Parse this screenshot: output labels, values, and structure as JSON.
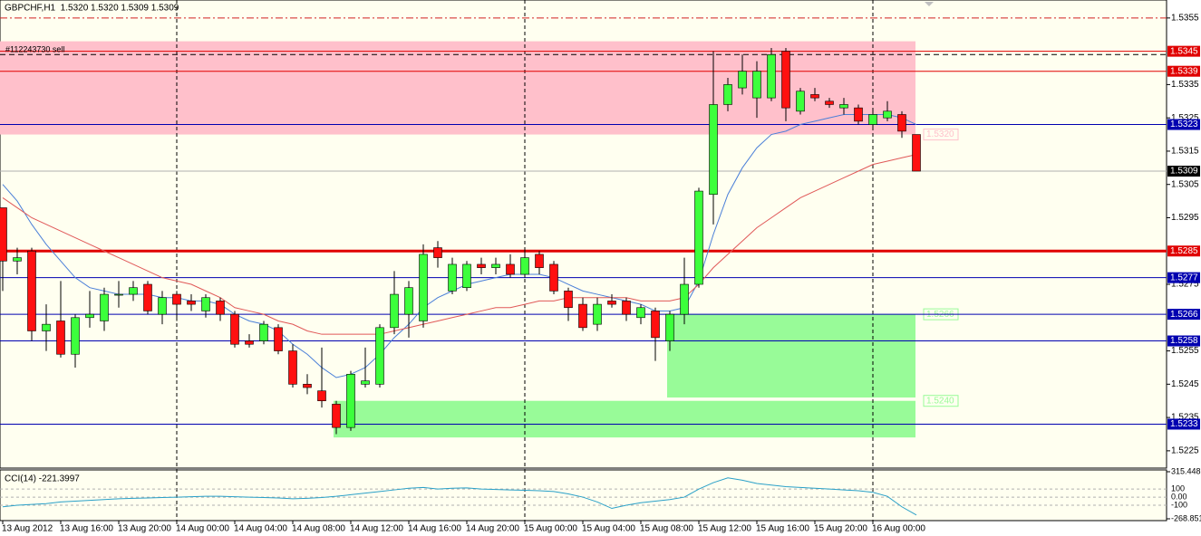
{
  "chart_data": [
    {
      "type": "candlestick",
      "title": "GBPCHF,H1  1.5320 1.5320 1.5309 1.5309",
      "annotation": "#112243730 sell",
      "categories": [
        "13 Aug 2012",
        null,
        null,
        null,
        "13 Aug 16:00",
        null,
        null,
        null,
        "13 Aug 20:00",
        null,
        null,
        null,
        "14 Aug 00:00",
        null,
        null,
        null,
        "14 Aug 04:00",
        null,
        null,
        null,
        "14 Aug 08:00",
        null,
        null,
        null,
        "14 Aug 12:00",
        null,
        null,
        null,
        "14 Aug 16:00",
        null,
        null,
        null,
        "14 Aug 20:00",
        null,
        null,
        null,
        "15 Aug 00:00",
        null,
        null,
        null,
        "15 Aug 04:00",
        null,
        null,
        null,
        "15 Aug 08:00",
        null,
        null,
        null,
        "15 Aug 12:00",
        null,
        null,
        null,
        "15 Aug 16:00",
        null,
        null,
        null,
        "15 Aug 20:00",
        null,
        null,
        null,
        "16 Aug 00:00",
        null,
        null,
        null
      ],
      "open": [
        1.5298,
        1.5282,
        1.5285,
        1.5261,
        1.5264,
        1.5254,
        1.5265,
        1.5264,
        1.5272,
        1.5272,
        1.5275,
        1.5266,
        1.5272,
        1.527,
        1.5267,
        1.527,
        1.5266,
        1.5258,
        1.5258,
        1.5262,
        1.5255,
        1.5245,
        1.5243,
        1.5239,
        1.5232,
        1.5245,
        1.5245,
        1.5262,
        1.5266,
        1.5264,
        1.5286,
        1.5273,
        1.5274,
        1.5281,
        1.528,
        1.5281,
        1.5278,
        1.5284,
        1.5281,
        1.5273,
        1.5269,
        1.5263,
        1.527,
        1.527,
        1.5265,
        1.5267,
        1.5258,
        1.5266,
        1.5275,
        1.5302,
        1.5329,
        1.5334,
        1.5331,
        1.5331,
        1.5345,
        1.5327,
        1.5332,
        1.533,
        1.5328,
        1.5328,
        1.5323,
        1.5325,
        1.5326,
        1.532
      ],
      "high": [
        1.5298,
        1.5286,
        1.5286,
        1.5269,
        1.5276,
        1.5266,
        1.5273,
        1.5274,
        1.5276,
        1.5276,
        1.5276,
        1.5273,
        1.5273,
        1.5272,
        1.5272,
        1.5271,
        1.5267,
        1.526,
        1.5264,
        1.5263,
        1.5257,
        1.5248,
        1.5256,
        1.524,
        1.5249,
        1.5256,
        1.5263,
        1.5279,
        1.5276,
        1.5287,
        1.5288,
        1.5283,
        1.5282,
        1.5283,
        1.5283,
        1.5284,
        1.5286,
        1.5285,
        1.5282,
        1.5274,
        1.5271,
        1.5271,
        1.5272,
        1.5271,
        1.5269,
        1.5268,
        1.5267,
        1.5283,
        1.5304,
        1.5345,
        1.5337,
        1.5344,
        1.5342,
        1.5346,
        1.5346,
        1.5334,
        1.5334,
        1.5331,
        1.5331,
        1.5329,
        1.5327,
        1.533,
        1.5327,
        1.532
      ],
      "low": [
        1.5273,
        1.5278,
        1.5258,
        1.5255,
        1.5253,
        1.525,
        1.5262,
        1.5261,
        1.5268,
        1.527,
        1.5266,
        1.5263,
        1.5264,
        1.5267,
        1.5265,
        1.5264,
        1.5256,
        1.5256,
        1.5257,
        1.5254,
        1.5244,
        1.5242,
        1.5238,
        1.523,
        1.5231,
        1.5244,
        1.5244,
        1.526,
        1.5259,
        1.5262,
        1.528,
        1.5272,
        1.5273,
        1.5278,
        1.5278,
        1.5277,
        1.5277,
        1.5278,
        1.5272,
        1.5264,
        1.5261,
        1.5261,
        1.5268,
        1.5264,
        1.5263,
        1.5252,
        1.5255,
        1.5263,
        1.5274,
        1.5293,
        1.5327,
        1.5332,
        1.5325,
        1.533,
        1.5324,
        1.5326,
        1.533,
        1.5328,
        1.5326,
        1.5323,
        1.5322,
        1.5324,
        1.5319,
        1.5309
      ],
      "close": [
        1.5282,
        1.5283,
        1.5261,
        1.5263,
        1.5254,
        1.5265,
        1.5266,
        1.5272,
        1.5272,
        1.5274,
        1.5267,
        1.5271,
        1.5269,
        1.5269,
        1.5271,
        1.5266,
        1.5257,
        1.5257,
        1.5263,
        1.5255,
        1.5245,
        1.5244,
        1.524,
        1.5232,
        1.5248,
        1.5246,
        1.5262,
        1.5272,
        1.5274,
        1.5284,
        1.5283,
        1.5281,
        1.5281,
        1.528,
        1.5281,
        1.5278,
        1.5283,
        1.528,
        1.5273,
        1.5268,
        1.5262,
        1.5269,
        1.5269,
        1.5266,
        1.5268,
        1.5259,
        1.5266,
        1.5275,
        1.5303,
        1.5329,
        1.5335,
        1.5339,
        1.5339,
        1.5344,
        1.5328,
        1.5333,
        1.5331,
        1.5329,
        1.5329,
        1.5324,
        1.5326,
        1.5327,
        1.5321,
        1.5309
      ],
      "up_color": "#3cff3c",
      "down_color": "#ff1010",
      "overlays": [
        {
          "color": "#4a7fd8",
          "values": [
            1.5305,
            1.53,
            1.5293,
            1.5287,
            1.5282,
            1.5277,
            1.5274,
            1.5273,
            1.5272,
            1.5272,
            1.5272,
            1.5271,
            1.5271,
            1.527,
            1.527,
            1.5269,
            1.5266,
            1.5264,
            1.5263,
            1.5261,
            1.5257,
            1.5254,
            1.525,
            1.5247,
            1.5248,
            1.525,
            1.5254,
            1.5259,
            1.5263,
            1.5268,
            1.5271,
            1.5273,
            1.5275,
            1.5276,
            1.5277,
            1.5278,
            1.5278,
            1.5278,
            1.5277,
            1.5275,
            1.5273,
            1.5272,
            1.5271,
            1.527,
            1.5269,
            1.5267,
            1.5267,
            1.5268,
            1.5276,
            1.529,
            1.5302,
            1.531,
            1.5316,
            1.532,
            1.5321,
            1.5323,
            1.5324,
            1.5325,
            1.5326,
            1.5326,
            1.5326,
            1.5326,
            1.5325,
            1.5323
          ]
        },
        {
          "color": "#e05858",
          "values": [
            1.5301,
            1.5298,
            1.5295,
            1.5293,
            1.5291,
            1.5289,
            1.5287,
            1.5285,
            1.5283,
            1.5281,
            1.5279,
            1.5277,
            1.5276,
            1.5275,
            1.5273,
            1.5271,
            1.5268,
            1.5267,
            1.5266,
            1.5264,
            1.5263,
            1.5261,
            1.526,
            1.526,
            1.526,
            1.526,
            1.526,
            1.5261,
            1.5262,
            1.5263,
            1.5264,
            1.5265,
            1.5266,
            1.5267,
            1.5268,
            1.5268,
            1.5269,
            1.527,
            1.527,
            1.5271,
            1.5271,
            1.5271,
            1.5271,
            1.5271,
            1.527,
            1.527,
            1.527,
            1.5271,
            1.5275,
            1.528,
            1.5284,
            1.5288,
            1.5292,
            1.5295,
            1.5298,
            1.5301,
            1.5303,
            1.5305,
            1.5307,
            1.5309,
            1.5311,
            1.5312,
            1.5313,
            1.5314
          ]
        }
      ],
      "ylim": [
        1.52198,
        1.53604
      ],
      "yticks": [
        1.5355,
        1.5335,
        1.5325,
        1.5315,
        1.5305,
        1.5295,
        1.5275,
        1.5255,
        1.5245,
        1.5235,
        1.5225
      ],
      "zones": [
        {
          "edge": {
            "value": 1.532,
            "label": "1.5320"
          },
          "to": 1.5348,
          "color": "#ffc0cb"
        },
        {
          "edge": 1.5266,
          "to": 1.5241,
          "color": "#98fb98"
        },
        {
          "edge": {
            "value": 1.524,
            "label": "1.5240"
          },
          "to": 1.5229,
          "color": "#98fb98"
        }
      ],
      "levels": [
        {
          "price": 1.5355,
          "color": "#d02020",
          "style": "dashdot",
          "labeled": false
        },
        {
          "price": 1.5344,
          "color": "#000000",
          "style": "dashed",
          "labeled": false
        },
        {
          "price": 1.5345,
          "color": "#e00000",
          "labeled": true
        },
        {
          "price": 1.5339,
          "color": "#e00000",
          "labeled": true
        },
        {
          "price": 1.5323,
          "color": "#0000b0",
          "labeled": true
        },
        {
          "price": 1.5309,
          "color": "#b0b0b0",
          "label_color": "#000000",
          "labeled": true
        },
        {
          "price": 1.5285,
          "color": "#e00000",
          "width": 3,
          "labeled": true
        },
        {
          "price": 1.5277,
          "color": "#0000b0",
          "labeled": true
        },
        {
          "price": 1.5266,
          "color": "#0000b0",
          "labeled": true
        },
        {
          "price": 1.5258,
          "color": "#0000b0",
          "labeled": true
        },
        {
          "price": 1.5233,
          "color": "#0000b0",
          "labeled": true
        }
      ]
    },
    {
      "type": "line",
      "title": "CCI(14) -221.3997",
      "color": "#2aa0c8",
      "values": [
        -120,
        -100,
        -90,
        -80,
        -60,
        -50,
        -40,
        -30,
        -20,
        -15,
        -10,
        -5,
        0,
        5,
        10,
        10,
        5,
        0,
        -5,
        -10,
        -20,
        -15,
        -5,
        10,
        30,
        50,
        70,
        90,
        110,
        120,
        100,
        110,
        115,
        100,
        95,
        90,
        85,
        80,
        70,
        40,
        0,
        -60,
        -140,
        -100,
        -70,
        -50,
        -30,
        0,
        100,
        180,
        240,
        210,
        170,
        150,
        130,
        120,
        110,
        100,
        90,
        80,
        60,
        10,
        -120,
        -221.3997
      ],
      "ylim": [
        -268.851,
        315.448
      ],
      "yticks": [
        315.448,
        100,
        {
          "value": 0,
          "label": "0.00"
        },
        -100,
        -268.851
      ],
      "grid": true
    }
  ]
}
